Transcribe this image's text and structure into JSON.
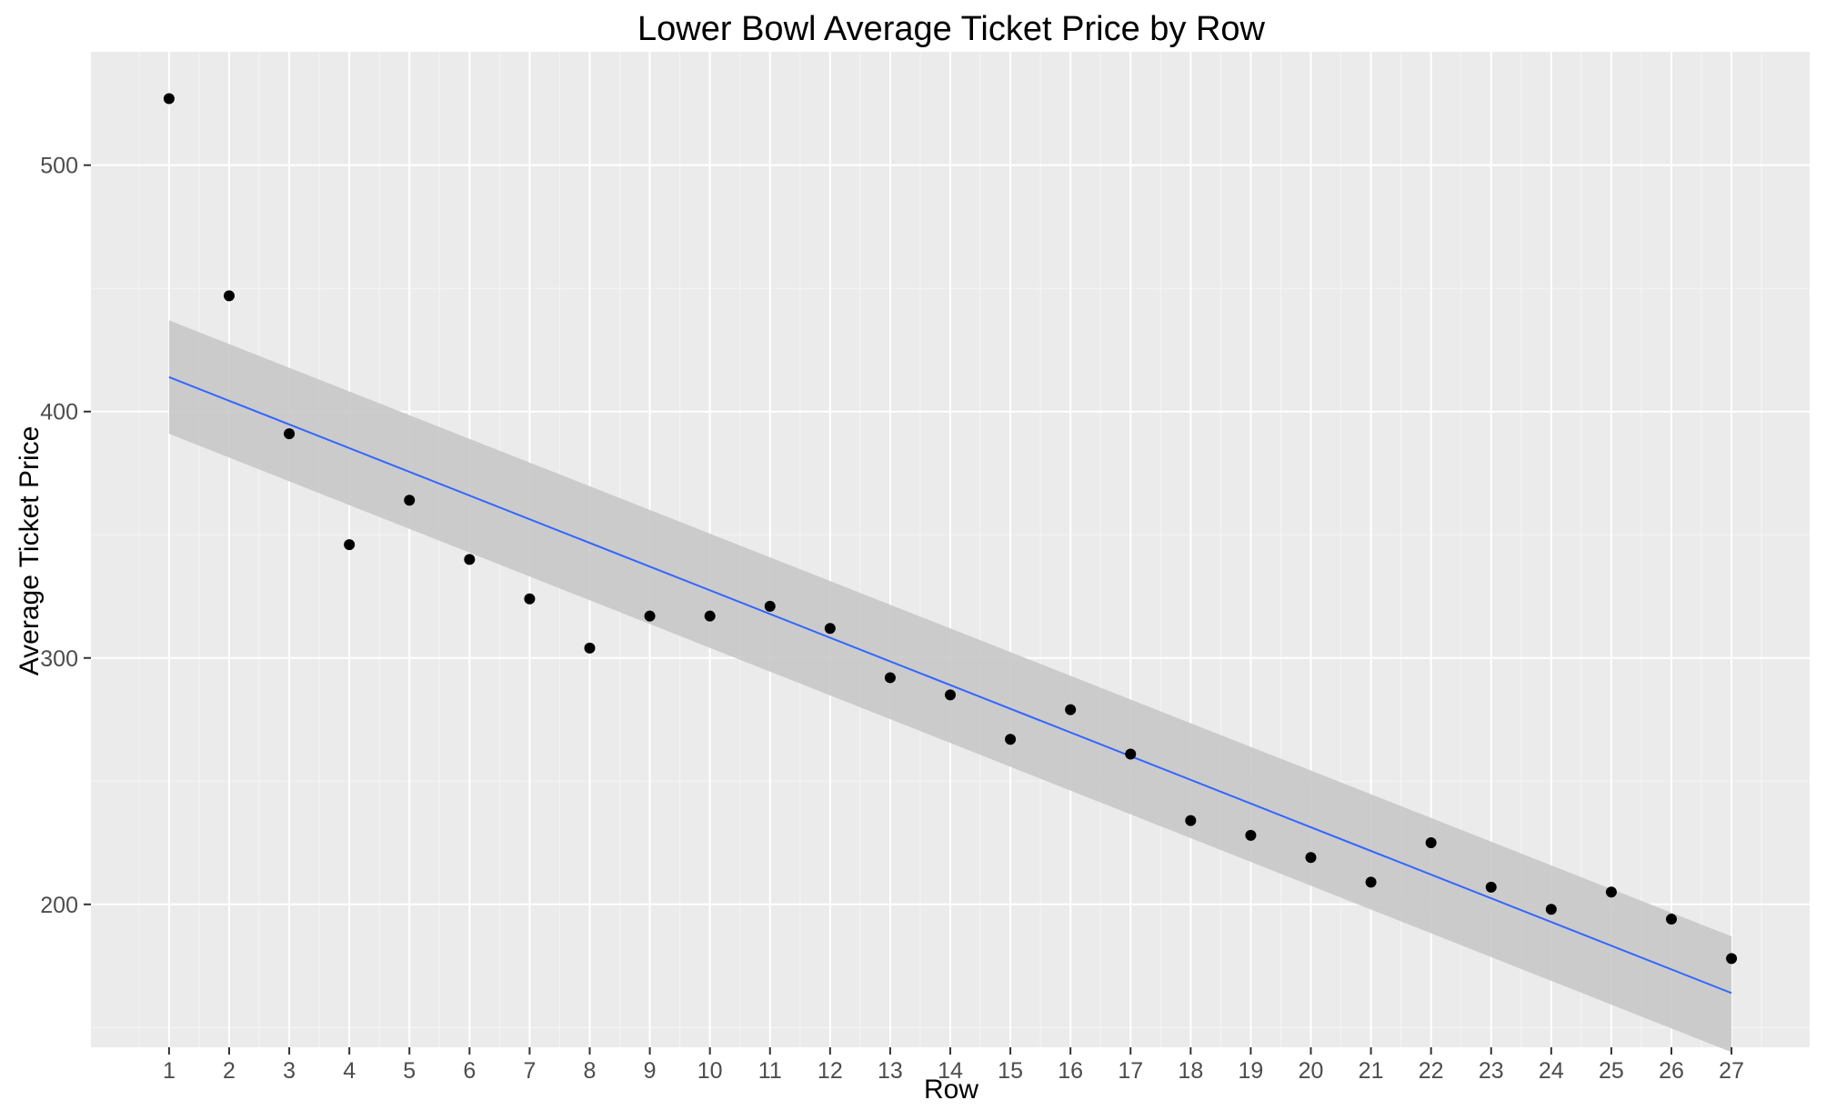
{
  "chart_data": {
    "type": "scatter",
    "title": "Lower Bowl Average Ticket Price by Row",
    "xlabel": "Row",
    "ylabel": "Average Ticket Price",
    "x": [
      1,
      2,
      3,
      4,
      5,
      6,
      7,
      8,
      9,
      10,
      11,
      12,
      13,
      14,
      15,
      16,
      17,
      18,
      19,
      20,
      21,
      22,
      23,
      24,
      25,
      26,
      27
    ],
    "y": [
      527,
      447,
      391,
      346,
      364,
      340,
      324,
      304,
      317,
      317,
      321,
      312,
      292,
      285,
      267,
      279,
      261,
      234,
      228,
      219,
      209,
      225,
      207,
      198,
      205,
      194,
      178
    ],
    "xticks": [
      "1",
      "2",
      "3",
      "4",
      "5",
      "6",
      "7",
      "8",
      "9",
      "10",
      "11",
      "12",
      "13",
      "14",
      "15",
      "16",
      "17",
      "18",
      "19",
      "20",
      "21",
      "22",
      "23",
      "24",
      "25",
      "26",
      "27"
    ],
    "yticks": [
      "200",
      "300",
      "400",
      "500"
    ],
    "xlim": [
      -0.3,
      28.3
    ],
    "ylim": [
      142,
      546
    ],
    "trend_line": {
      "type": "linear",
      "x": [
        1,
        27
      ],
      "y": [
        414,
        164
      ],
      "ci_lower": [
        391,
        140
      ],
      "ci_upper": [
        437,
        187
      ],
      "color": "#3366FF",
      "band_color": "#C8C8C8"
    },
    "point_color": "#000000",
    "panel_background": "#EBEBEB",
    "grid": true
  }
}
